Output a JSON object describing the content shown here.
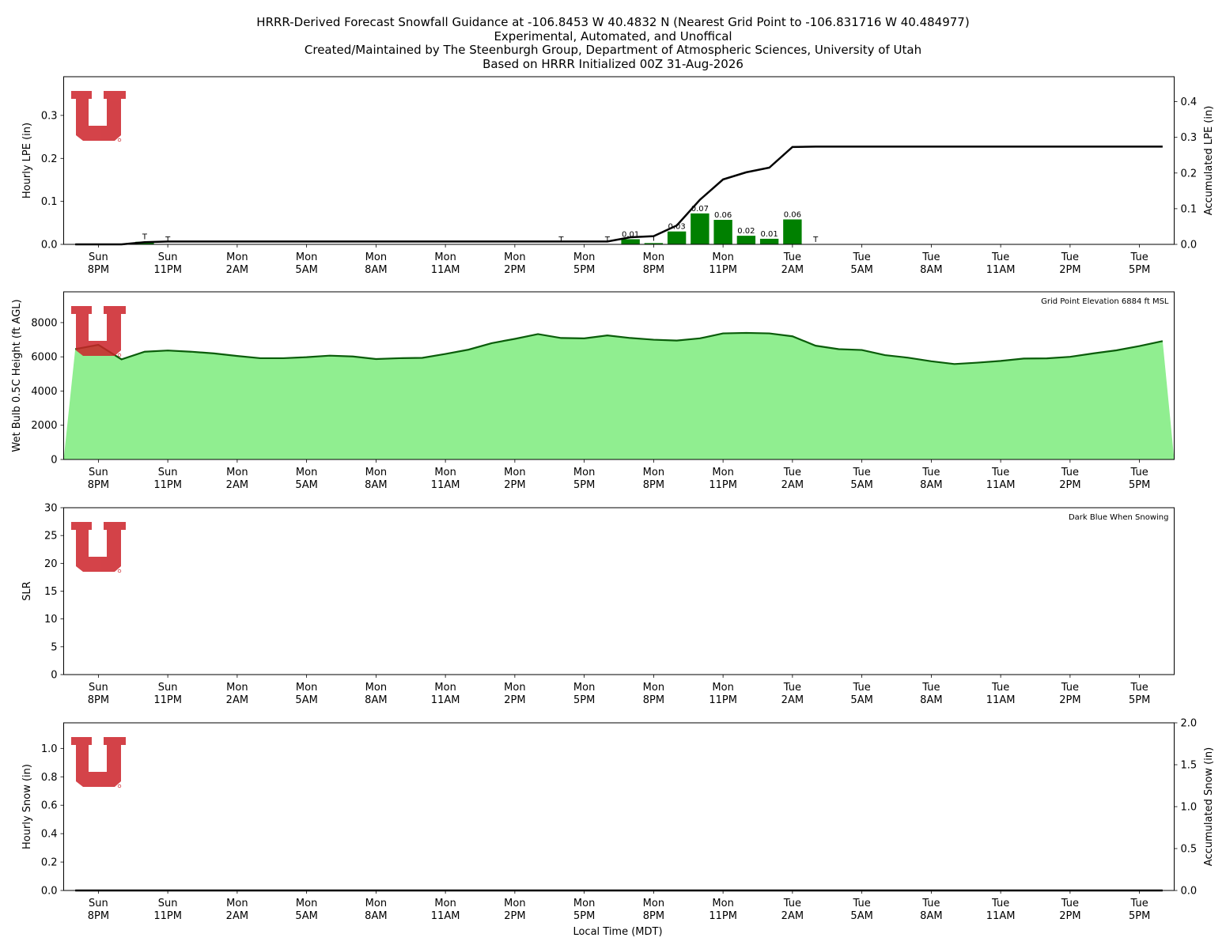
{
  "title": {
    "line1": "HRRR-Derived Forecast Snowfall Guidance at -106.8453 W 40.4832 N (Nearest Grid Point to -106.831716 W 40.484977)",
    "line2": "Experimental, Automated, and Unoffical",
    "line3": "Created/Maintained by The Steenburgh Group, Department of Atmospheric Sciences, University of Utah",
    "line4": "Based on HRRR Initialized 00Z 31-Aug-2026"
  },
  "xlabel": "Local Time (MDT)",
  "x_ticks": [
    {
      "day": "Sun",
      "time": "8PM",
      "hour": 1
    },
    {
      "day": "Sun",
      "time": "11PM",
      "hour": 4
    },
    {
      "day": "Mon",
      "time": "2AM",
      "hour": 7
    },
    {
      "day": "Mon",
      "time": "5AM",
      "hour": 10
    },
    {
      "day": "Mon",
      "time": "8AM",
      "hour": 13
    },
    {
      "day": "Mon",
      "time": "11AM",
      "hour": 16
    },
    {
      "day": "Mon",
      "time": "2PM",
      "hour": 19
    },
    {
      "day": "Mon",
      "time": "5PM",
      "hour": 22
    },
    {
      "day": "Mon",
      "time": "8PM",
      "hour": 25
    },
    {
      "day": "Mon",
      "time": "11PM",
      "hour": 28
    },
    {
      "day": "Tue",
      "time": "2AM",
      "hour": 31
    },
    {
      "day": "Tue",
      "time": "5AM",
      "hour": 34
    },
    {
      "day": "Tue",
      "time": "8AM",
      "hour": 37
    },
    {
      "day": "Tue",
      "time": "11AM",
      "hour": 40
    },
    {
      "day": "Tue",
      "time": "2PM",
      "hour": 43
    },
    {
      "day": "Tue",
      "time": "5PM",
      "hour": 46
    }
  ],
  "colors": {
    "bar": "#008000",
    "area_fill": "#90ee90",
    "area_line": "#0a5c0a",
    "accum_line": "#000000",
    "logo": "#cc2229"
  },
  "logo_icon": "university-of-utah-logo",
  "chart_data": [
    {
      "type": "bar",
      "name": "hourly-lpe",
      "ylabel": "Hourly LPE (in)",
      "y2label": "Accumulated LPE (in)",
      "ylim": [
        0,
        0.39
      ],
      "y2lim": [
        0,
        0.47
      ],
      "y_ticks": [
        "0.0",
        "0.1",
        "0.2",
        "0.3"
      ],
      "y2_ticks": [
        "0.0",
        "0.1",
        "0.2",
        "0.3",
        "0.4"
      ],
      "bars": [
        {
          "hour": 3,
          "value": 0.006
        },
        {
          "hour": 24,
          "value": 0.012
        },
        {
          "hour": 25,
          "value": 0.003
        },
        {
          "hour": 26,
          "value": 0.03
        },
        {
          "hour": 27,
          "value": 0.072
        },
        {
          "hour": 28,
          "value": 0.057
        },
        {
          "hour": 29,
          "value": 0.02
        },
        {
          "hour": 30,
          "value": 0.013
        },
        {
          "hour": 31,
          "value": 0.058
        }
      ],
      "bar_labels": [
        {
          "hour": 3,
          "text": "T",
          "value": 0.006
        },
        {
          "hour": 4,
          "text": "T",
          "value": 0.0
        },
        {
          "hour": 21,
          "text": "T",
          "value": 0.0
        },
        {
          "hour": 23,
          "text": "T",
          "value": 0.0
        },
        {
          "hour": 24,
          "text": "0.01",
          "value": 0.012
        },
        {
          "hour": 25,
          "text": "T",
          "value": 0.003
        },
        {
          "hour": 26,
          "text": "0.03",
          "value": 0.03
        },
        {
          "hour": 27,
          "text": "0.07",
          "value": 0.072
        },
        {
          "hour": 28,
          "text": "0.06",
          "value": 0.057
        },
        {
          "hour": 29,
          "text": "0.02",
          "value": 0.02
        },
        {
          "hour": 30,
          "text": "0.01",
          "value": 0.013
        },
        {
          "hour": 31,
          "text": "0.06",
          "value": 0.058
        },
        {
          "hour": 32,
          "text": "T",
          "value": 0.0
        }
      ],
      "accum": [
        {
          "hour": 0,
          "value": 0
        },
        {
          "hour": 2,
          "value": 0
        },
        {
          "hour": 3,
          "value": 0.006
        },
        {
          "hour": 4,
          "value": 0.008
        },
        {
          "hour": 23,
          "value": 0.008
        },
        {
          "hour": 24,
          "value": 0.02
        },
        {
          "hour": 25,
          "value": 0.023
        },
        {
          "hour": 26,
          "value": 0.053
        },
        {
          "hour": 27,
          "value": 0.125
        },
        {
          "hour": 28,
          "value": 0.182
        },
        {
          "hour": 29,
          "value": 0.202
        },
        {
          "hour": 30,
          "value": 0.215
        },
        {
          "hour": 31,
          "value": 0.273
        },
        {
          "hour": 32,
          "value": 0.274
        },
        {
          "hour": 47,
          "value": 0.274
        }
      ]
    },
    {
      "type": "area",
      "name": "wet-bulb-height",
      "ylabel": "Wet Bulb 0.5C Height (ft AGL)",
      "ylim": [
        0,
        9800
      ],
      "y_ticks": [
        "0",
        "2000",
        "4000",
        "6000",
        "8000"
      ],
      "annotation": "Grid Point Elevation 6884 ft MSL",
      "points": [
        {
          "hour": 0,
          "value": 6450
        },
        {
          "hour": 1,
          "value": 6700
        },
        {
          "hour": 2,
          "value": 5850
        },
        {
          "hour": 3,
          "value": 6300
        },
        {
          "hour": 4,
          "value": 6370
        },
        {
          "hour": 5,
          "value": 6300
        },
        {
          "hour": 6,
          "value": 6200
        },
        {
          "hour": 7,
          "value": 6050
        },
        {
          "hour": 8,
          "value": 5920
        },
        {
          "hour": 9,
          "value": 5920
        },
        {
          "hour": 10,
          "value": 5980
        },
        {
          "hour": 11,
          "value": 6070
        },
        {
          "hour": 12,
          "value": 6020
        },
        {
          "hour": 13,
          "value": 5870
        },
        {
          "hour": 14,
          "value": 5920
        },
        {
          "hour": 15,
          "value": 5940
        },
        {
          "hour": 16,
          "value": 6170
        },
        {
          "hour": 17,
          "value": 6420
        },
        {
          "hour": 18,
          "value": 6800
        },
        {
          "hour": 19,
          "value": 7050
        },
        {
          "hour": 20,
          "value": 7330
        },
        {
          "hour": 21,
          "value": 7100
        },
        {
          "hour": 22,
          "value": 7080
        },
        {
          "hour": 23,
          "value": 7250
        },
        {
          "hour": 24,
          "value": 7100
        },
        {
          "hour": 25,
          "value": 7000
        },
        {
          "hour": 26,
          "value": 6950
        },
        {
          "hour": 27,
          "value": 7080
        },
        {
          "hour": 28,
          "value": 7370
        },
        {
          "hour": 29,
          "value": 7400
        },
        {
          "hour": 30,
          "value": 7370
        },
        {
          "hour": 31,
          "value": 7200
        },
        {
          "hour": 32,
          "value": 6650
        },
        {
          "hour": 33,
          "value": 6450
        },
        {
          "hour": 34,
          "value": 6400
        },
        {
          "hour": 35,
          "value": 6100
        },
        {
          "hour": 36,
          "value": 5950
        },
        {
          "hour": 37,
          "value": 5740
        },
        {
          "hour": 38,
          "value": 5580
        },
        {
          "hour": 39,
          "value": 5660
        },
        {
          "hour": 40,
          "value": 5760
        },
        {
          "hour": 41,
          "value": 5900
        },
        {
          "hour": 42,
          "value": 5910
        },
        {
          "hour": 43,
          "value": 6000
        },
        {
          "hour": 44,
          "value": 6200
        },
        {
          "hour": 45,
          "value": 6380
        },
        {
          "hour": 46,
          "value": 6630
        },
        {
          "hour": 47,
          "value": 6920
        }
      ]
    },
    {
      "type": "scatter",
      "name": "slr",
      "ylabel": "SLR",
      "ylim": [
        0,
        30
      ],
      "y_ticks": [
        "0",
        "5",
        "10",
        "15",
        "20",
        "25",
        "30"
      ],
      "annotation": "Dark Blue When Snowing",
      "points": []
    },
    {
      "type": "bar",
      "name": "hourly-snow",
      "ylabel": "Hourly Snow (in)",
      "y2label": "Accumulated Snow (in)",
      "ylim": [
        0,
        1.18
      ],
      "y2lim": [
        0,
        2.0
      ],
      "y_ticks": [
        "0.0",
        "0.2",
        "0.4",
        "0.6",
        "0.8",
        "1.0"
      ],
      "y2_ticks": [
        "0.0",
        "0.5",
        "1.0",
        "1.5",
        "2.0"
      ],
      "bars": [],
      "accum": [
        {
          "hour": 0,
          "value": 0
        },
        {
          "hour": 47,
          "value": 0
        }
      ]
    }
  ]
}
